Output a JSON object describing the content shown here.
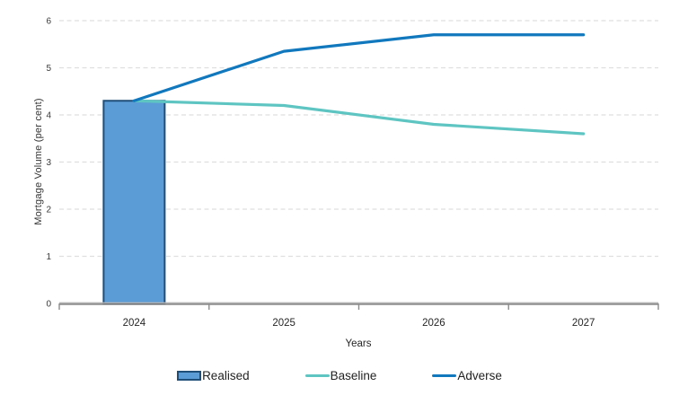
{
  "chart_data": {
    "type": "combo-bar-line",
    "title": "",
    "xlabel": "Years",
    "ylabel": "Mortgage Volume (per cent)",
    "categories": [
      "2024",
      "2025",
      "2026",
      "2027"
    ],
    "y_ticks": [
      0,
      1,
      2,
      3,
      4,
      5,
      6
    ],
    "ylim": [
      0,
      6
    ],
    "grid": "horizontal-dashed",
    "legend_position": "bottom",
    "bar_series": {
      "name": "Realised",
      "values": [
        4.3,
        null,
        null,
        null
      ],
      "fill": "#5B9CD6",
      "border": "#1F4E79"
    },
    "line_series": [
      {
        "name": "Baseline",
        "values": [
          4.3,
          4.2,
          3.8,
          3.6
        ],
        "color": "#5FC5C2"
      },
      {
        "name": "Adverse",
        "values": [
          4.3,
          5.35,
          5.7,
          5.7
        ],
        "color": "#1178BE"
      }
    ],
    "colors": {
      "grid": "#DFDFDF",
      "axis_light": "#B3B3B3",
      "axis_dark": "#737373",
      "tick": "#8C8C8C",
      "y_tick_label": "#3A3A3A",
      "x_tick_label": "#262626"
    }
  }
}
